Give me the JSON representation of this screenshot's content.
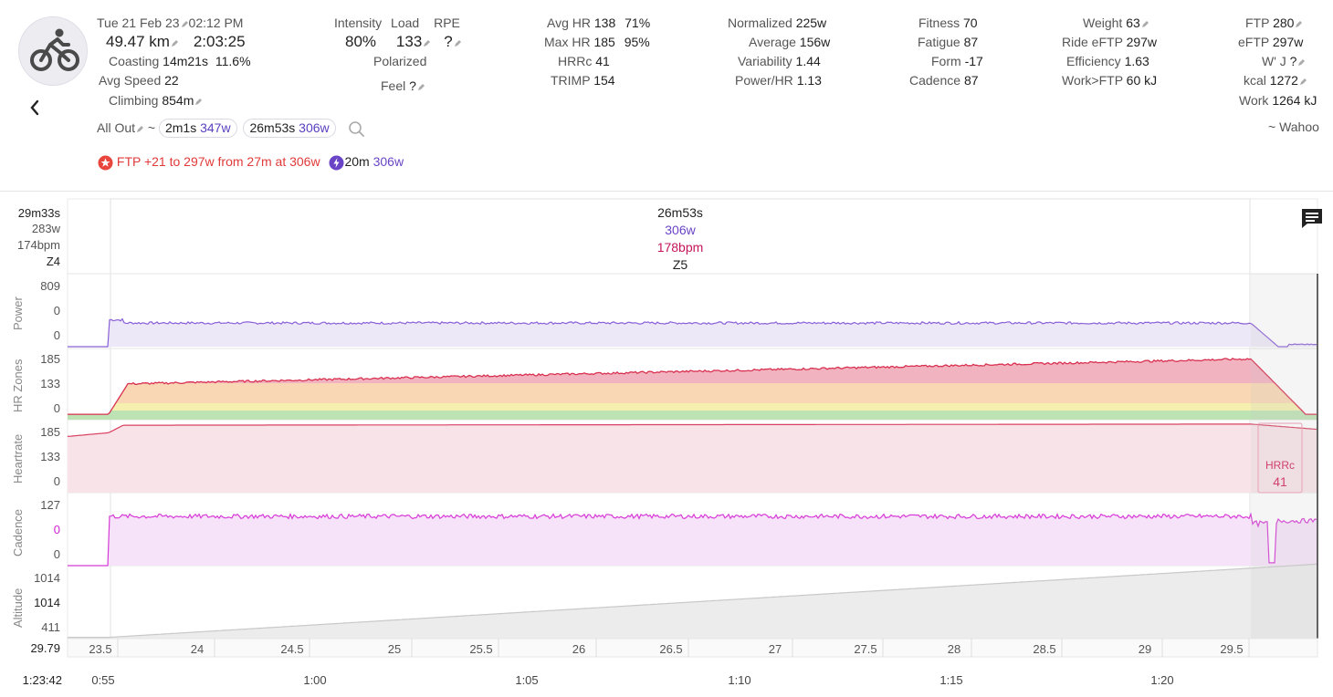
{
  "activity": {
    "date": "Tue 21 Feb 23",
    "time": "02:12 PM",
    "distance": "49.47 km",
    "duration": "2:03:25",
    "coasting_label": "Coasting",
    "coasting_time": "14m21s",
    "coasting_pct": "11.6%",
    "avg_speed_label": "Avg Speed",
    "avg_speed": "22",
    "climbing_label": "Climbing",
    "climbing": "854m",
    "sport_icon": "bike-icon"
  },
  "intensity": {
    "intensity_label": "Intensity",
    "intensity": "80%",
    "load_label": "Load",
    "load": "133",
    "rpe_label": "RPE",
    "rpe": "?",
    "polarized_label": "Polarized",
    "feel_label": "Feel",
    "feel": "?"
  },
  "hr": {
    "avg_hr_label": "Avg HR",
    "avg_hr": "138",
    "avg_hr_pct": "71%",
    "max_hr_label": "Max HR",
    "max_hr": "185",
    "max_hr_pct": "95%",
    "hrrc_label": "HRRc",
    "hrrc": "41",
    "trimp_label": "TRIMP",
    "trimp": "154"
  },
  "power": {
    "normalized_label": "Normalized",
    "normalized": "225w",
    "average_label": "Average",
    "average": "156w",
    "variability_label": "Variability",
    "variability": "1.44",
    "power_hr_label": "Power/HR",
    "power_hr": "1.13"
  },
  "fitness": {
    "fitness_label": "Fitness",
    "fitness": "70",
    "fatigue_label": "Fatigue",
    "fatigue": "87",
    "form_label": "Form",
    "form": "-17",
    "cadence_label": "Cadence",
    "cadence": "87"
  },
  "weight": {
    "weight_label": "Weight",
    "weight": "63",
    "ride_eftp_label": "Ride eFTP",
    "ride_eftp": "297w",
    "efficiency_label": "Efficiency",
    "efficiency": "1.63",
    "work_ftp_label": "Work>FTP",
    "work_ftp": "60 kJ"
  },
  "ftp": {
    "ftp_label": "FTP",
    "ftp": "280",
    "eftp_label": "eFTP",
    "eftp": "297w",
    "wj_label": "W' J",
    "wj": "?",
    "kcal_label": "kcal",
    "kcal": "1272",
    "work_label": "Work",
    "work": "1264 kJ",
    "source": "~ Wahoo"
  },
  "intervals": {
    "all_out_label": "All Out",
    "tilde": "~",
    "pills": [
      {
        "time": "2m1s",
        "watts": "347w"
      },
      {
        "time": "26m53s",
        "watts": "306w"
      }
    ]
  },
  "achievements": {
    "ftp_text": "FTP +21 to 297w from 27m at 306w",
    "best_time": "20m",
    "best_watts": "306w"
  },
  "chart": {
    "left_time": "29m33s",
    "left_power": "283w",
    "left_hr": "174bpm",
    "left_zone": "Z4",
    "sel_time": "26m53s",
    "sel_power": "306w",
    "sel_hr": "178bpm",
    "sel_zone": "Z5",
    "power_title": "Power",
    "power_ticks": [
      "809",
      "0",
      "0"
    ],
    "hrz_title": "HR Zones",
    "hrz_ticks": [
      "185",
      "133",
      "0"
    ],
    "hr_title": "Heartrate",
    "hr_ticks": [
      "185",
      "133",
      "0"
    ],
    "cad_title": "Cadence",
    "cad_ticks": [
      "127",
      "0",
      "0"
    ],
    "alt_title": "Altitude",
    "alt_ticks": [
      "1014",
      "1014",
      "411"
    ],
    "hrrc_label": "HRRc",
    "hrrc_value": "41",
    "dist_left": "29.79",
    "dist_ticks": [
      "23.5",
      "24",
      "24.5",
      "25",
      "25.5",
      "26",
      "26.5",
      "27",
      "27.5",
      "28",
      "28.5",
      "29",
      "29.5"
    ],
    "time_left": "1:23:42",
    "time_ticks": [
      "0:55",
      "1:00",
      "1:05",
      "1:10",
      "1:15",
      "1:20"
    ],
    "comment_icon": "comment-icon"
  },
  "chart_data": {
    "type": "line",
    "x_unit": "km",
    "x_range": [
      23.45,
      29.79
    ],
    "series": [
      {
        "name": "Power",
        "values_w": [
          0,
          0,
          310,
          300,
          305,
          302,
          306,
          300,
          304,
          306,
          302,
          305,
          300,
          306,
          310,
          303,
          305,
          300,
          303,
          306,
          302,
          40,
          20
        ]
      },
      {
        "name": "HR Zones",
        "values_bpm": [
          120,
          122,
          140,
          148,
          152,
          158,
          160,
          162,
          170,
          172,
          168,
          171,
          174,
          174,
          176,
          172,
          176,
          176,
          178,
          178,
          176,
          140,
          125
        ]
      },
      {
        "name": "Heartrate",
        "values_bpm": [
          152,
          160,
          178,
          180,
          180,
          181,
          181,
          182,
          182,
          182,
          182,
          183,
          183,
          183,
          183,
          183,
          183,
          183,
          183,
          183,
          183,
          175,
          168
        ]
      },
      {
        "name": "Cadence",
        "values_rpm": [
          0,
          0,
          91,
          88,
          89,
          87,
          90,
          88,
          88,
          89,
          88,
          90,
          88,
          89,
          88,
          90,
          87,
          89,
          88,
          89,
          88,
          30,
          80
        ]
      },
      {
        "name": "Altitude",
        "values_m": [
          411,
          420,
          440,
          470,
          500,
          530,
          560,
          590,
          620,
          650,
          680,
          710,
          740,
          770,
          800,
          830,
          860,
          890,
          920,
          950,
          980,
          1005,
          1014
        ]
      }
    ]
  }
}
